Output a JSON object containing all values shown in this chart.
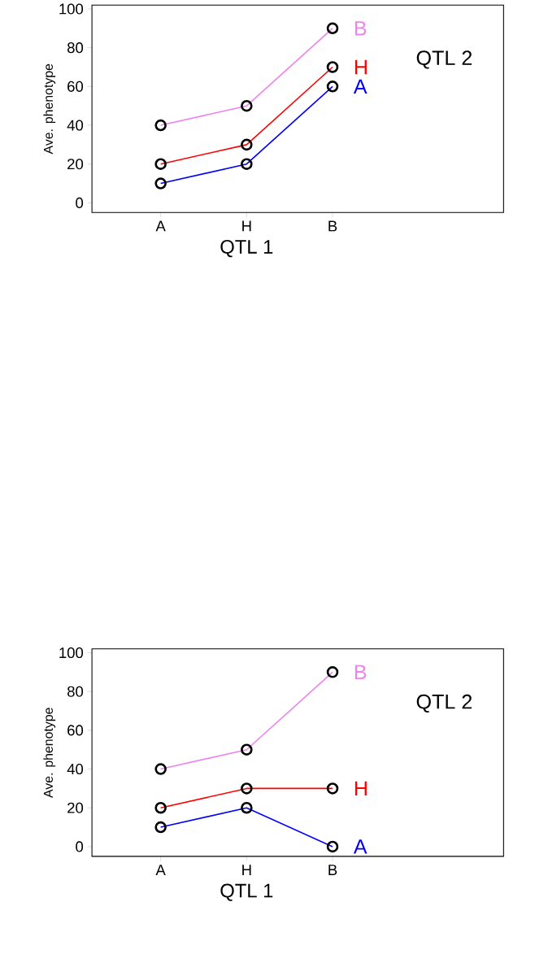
{
  "chart_data": [
    {
      "type": "line",
      "xlabel": "QTL 1",
      "ylabel": "Ave. phenotype",
      "legend_title": "QTL 2",
      "categories": [
        "A",
        "H",
        "B"
      ],
      "ylim": [
        -5,
        102
      ],
      "yticks": [
        0,
        20,
        40,
        60,
        80,
        100
      ],
      "marker": "circle",
      "line_style": "solid",
      "series": [
        {
          "name": "A",
          "color": "#0000ff",
          "values": [
            10,
            20,
            60
          ]
        },
        {
          "name": "H",
          "color": "#ff0000",
          "values": [
            20,
            30,
            70
          ]
        },
        {
          "name": "B",
          "color": "#ee82ee",
          "values": [
            40,
            50,
            90
          ]
        }
      ]
    },
    {
      "type": "line",
      "xlabel": "QTL 1",
      "ylabel": "Ave. phenotype",
      "legend_title": "QTL 2",
      "categories": [
        "A",
        "H",
        "B"
      ],
      "ylim": [
        -5,
        102
      ],
      "yticks": [
        0,
        20,
        40,
        60,
        80,
        100
      ],
      "marker": "circle",
      "line_style": "solid",
      "series": [
        {
          "name": "A",
          "color": "#0000ff",
          "values": [
            10,
            20,
            0
          ]
        },
        {
          "name": "H",
          "color": "#ff0000",
          "values": [
            20,
            30,
            30
          ]
        },
        {
          "name": "B",
          "color": "#ee82ee",
          "values": [
            40,
            50,
            90
          ]
        }
      ]
    }
  ]
}
